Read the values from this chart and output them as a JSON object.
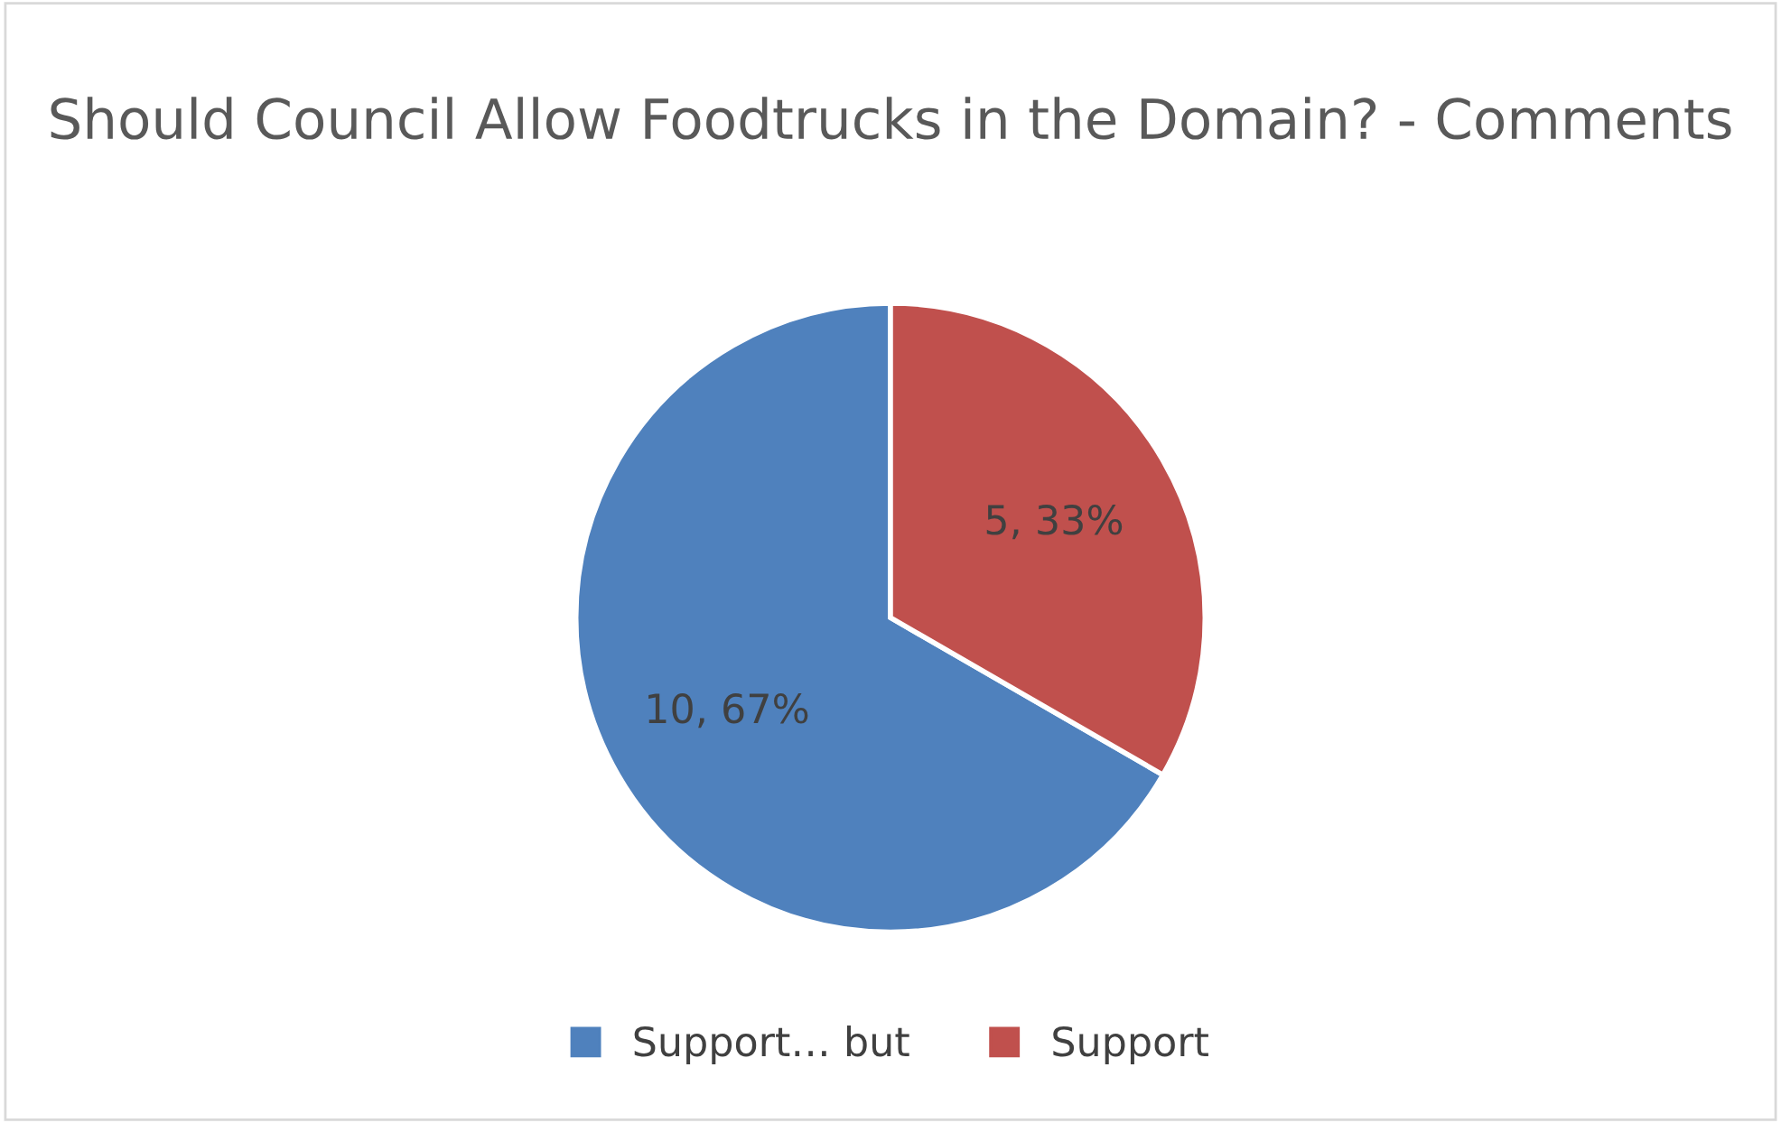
{
  "chart_data": {
    "type": "pie",
    "title": "Should Council Allow Foodtrucks in the Domain? - Comments",
    "categories": [
      "Support… but",
      "Support"
    ],
    "values": [
      10,
      5
    ],
    "colors": [
      "#4f81bd",
      "#c0504d"
    ],
    "value_labels": [
      "10, 67%",
      "5, 33%"
    ],
    "legend": "bottom"
  }
}
